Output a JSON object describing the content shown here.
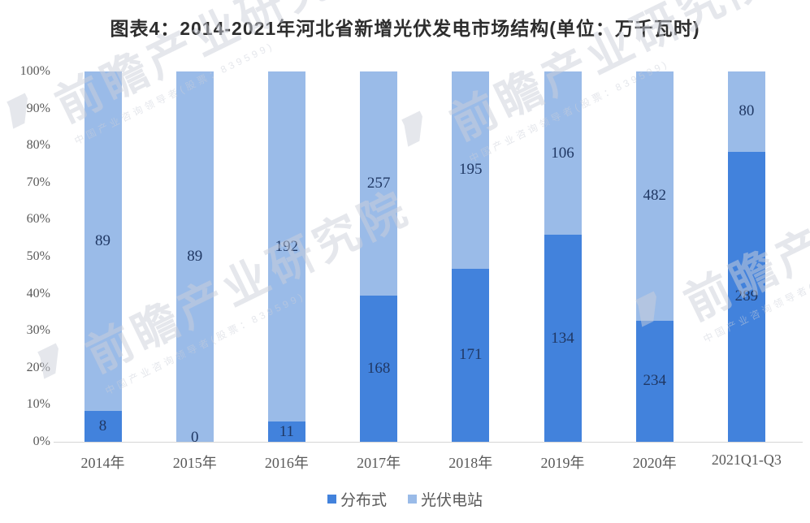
{
  "chart_data": {
    "type": "bar",
    "stacked": true,
    "percent_stacked": true,
    "title": "图表4：2014-2021年河北省新增光伏发电市场结构(单位：万千瓦时)",
    "categories": [
      "2014年",
      "2015年",
      "2016年",
      "2017年",
      "2018年",
      "2019年",
      "2020年",
      "2021Q1-Q3"
    ],
    "series": [
      {
        "name": "分布式",
        "color": "#4282dc",
        "values": [
          8,
          0,
          11,
          168,
          171,
          134,
          234,
          289
        ]
      },
      {
        "name": "光伏电站",
        "color": "#9abbe8",
        "values": [
          89,
          89,
          192,
          257,
          195,
          106,
          482,
          80
        ]
      }
    ],
    "xlabel": "",
    "ylabel": "",
    "yticks": [
      "0%",
      "10%",
      "20%",
      "30%",
      "40%",
      "50%",
      "60%",
      "70%",
      "80%",
      "90%",
      "100%"
    ],
    "ylim": [
      0,
      100
    ],
    "grid": false,
    "legend_position": "bottom",
    "bar_label_color": "#203864",
    "axis_text_color": "#595959",
    "baseline_color": "#d6d6d6"
  },
  "watermark": {
    "logo_glyph": "’",
    "text": "前瞻产业研究院",
    "subtext": "中国产业咨询领导者(股票：839599)"
  }
}
